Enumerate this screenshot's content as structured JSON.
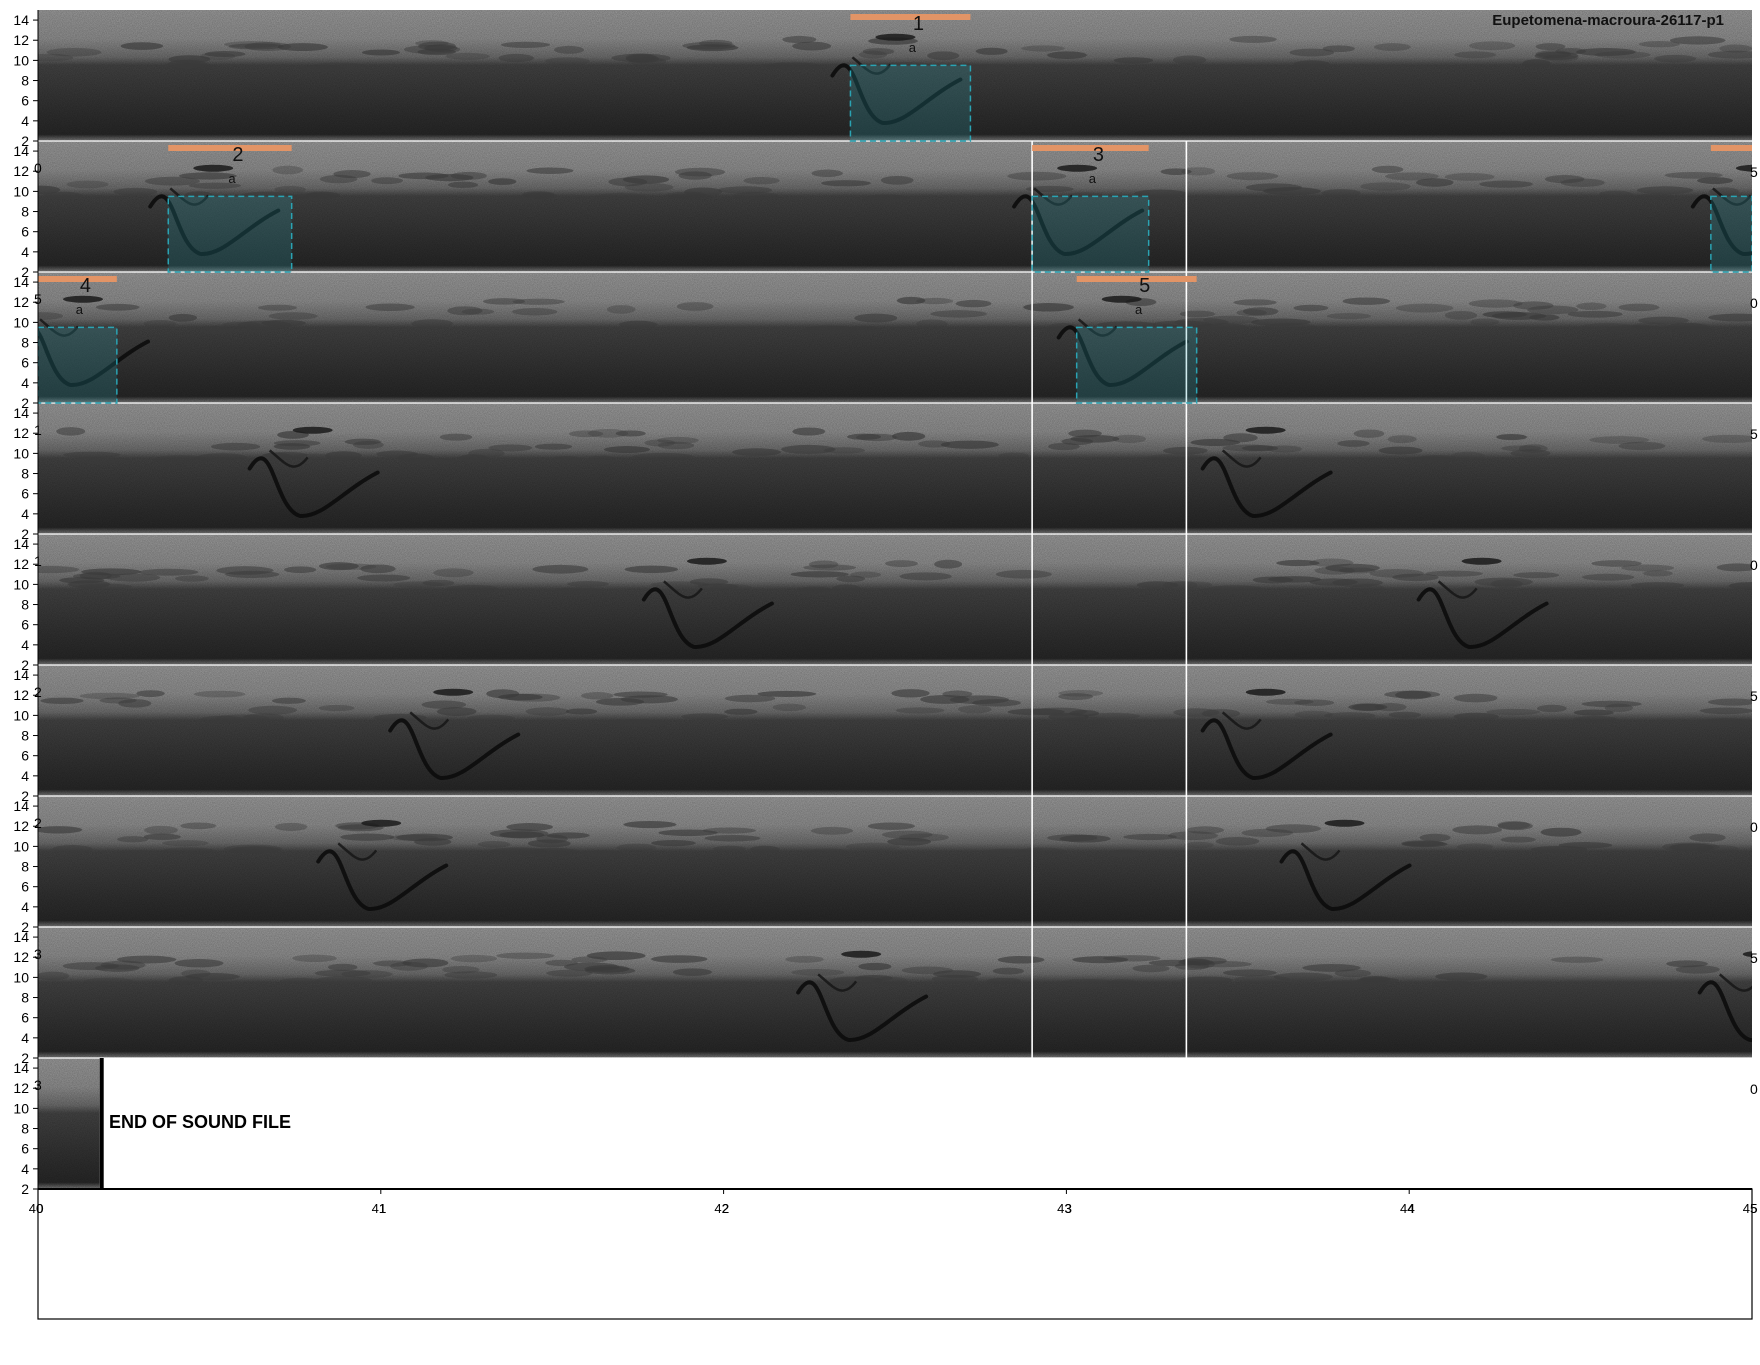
{
  "title": "Eupetomena-macroura-26117-p1",
  "end_label": "END OF SOUND FILE",
  "colors": {
    "annotation_bar": "#e29466",
    "selection_box": "#2aa3b3",
    "spectrogram_dark": "#2a2a2a",
    "spectrogram_light": "#b5b5b5"
  },
  "chart_data": {
    "type": "spectrogram",
    "rows": 9,
    "row_duration": 5,
    "y_ticks": [
      2,
      4,
      6,
      8,
      10,
      12,
      14
    ],
    "ylim": [
      2,
      15
    ],
    "ylabel": "",
    "x_ticks": [
      {
        "major": "40",
        "minor": "0"
      },
      {
        "major": "41",
        "minor": "1"
      },
      {
        "major": "42",
        "minor": "2"
      },
      {
        "major": "43",
        "minor": "3"
      },
      {
        "major": "44",
        "minor": "4"
      },
      {
        "major": "45",
        "minor": "5"
      }
    ],
    "row_edge_labels": [
      {
        "left": "",
        "right": ""
      },
      {
        "left": "0",
        "right": "5"
      },
      {
        "left": "5",
        "right": "0"
      },
      {
        "left": "1",
        "right": "5"
      },
      {
        "left": "1",
        "right": "0"
      },
      {
        "left": "2",
        "right": "5"
      },
      {
        "left": "2",
        "right": "0"
      },
      {
        "left": "3",
        "right": "5"
      },
      {
        "left": "3",
        "right": "0"
      }
    ],
    "end_row": 8,
    "end_fraction": 0.036,
    "separators": [
      2.9,
      3.35
    ],
    "separator_rows": [
      1,
      7
    ],
    "annotations": [
      {
        "id": "1",
        "label": "a",
        "row": 0,
        "start": 2.37,
        "end": 2.72,
        "fmin": 2,
        "fmax": 9.5
      },
      {
        "id": "2",
        "label": "a",
        "row": 1,
        "start": 0.38,
        "end": 0.74,
        "fmin": 2,
        "fmax": 9.5
      },
      {
        "id": "3",
        "label": "a",
        "row": 1,
        "start": 2.9,
        "end": 3.24,
        "fmin": 2,
        "fmax": 9.5
      },
      {
        "id": "4",
        "label": "a",
        "row": 2,
        "start": 0.0,
        "end": 0.23,
        "fmin": 2,
        "fmax": 9.5
      },
      {
        "id": "5",
        "label": "a",
        "row": 2,
        "start": 3.03,
        "end": 3.38,
        "fmin": 2,
        "fmax": 9.5
      }
    ],
    "annotation_cutoffs": [
      {
        "row": 1,
        "start": 4.88,
        "end": 5.0,
        "fmin": 2,
        "fmax": 9.5
      }
    ],
    "calls": [
      {
        "row": 0,
        "t": 2.37
      },
      {
        "row": 1,
        "t": 0.38
      },
      {
        "row": 1,
        "t": 2.9
      },
      {
        "row": 1,
        "t": 4.88
      },
      {
        "row": 2,
        "t": 0.0
      },
      {
        "row": 2,
        "t": 3.03
      },
      {
        "row": 3,
        "t": 0.67
      },
      {
        "row": 3,
        "t": 3.45
      },
      {
        "row": 4,
        "t": 1.82
      },
      {
        "row": 4,
        "t": 4.08
      },
      {
        "row": 5,
        "t": 1.08
      },
      {
        "row": 5,
        "t": 3.45
      },
      {
        "row": 6,
        "t": 0.87
      },
      {
        "row": 6,
        "t": 3.68
      },
      {
        "row": 7,
        "t": 2.27
      },
      {
        "row": 7,
        "t": 4.9
      }
    ]
  }
}
